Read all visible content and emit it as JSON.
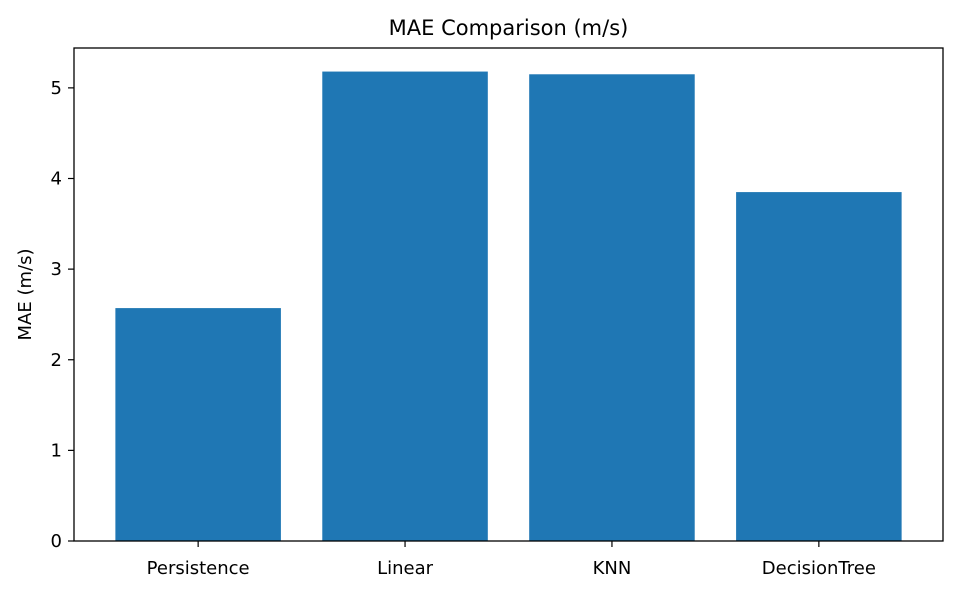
{
  "chart_data": {
    "type": "bar",
    "title": "MAE Comparison (m/s)",
    "xlabel": "",
    "ylabel": "MAE (m/s)",
    "categories": [
      "Persistence",
      "Linear",
      "KNN",
      "DecisionTree"
    ],
    "values": [
      2.57,
      5.18,
      5.15,
      3.85
    ],
    "ylim": [
      0,
      5.44
    ],
    "yticks": [
      0,
      1,
      2,
      3,
      4,
      5
    ],
    "grid": false,
    "bar_color": "#1f77b4"
  }
}
